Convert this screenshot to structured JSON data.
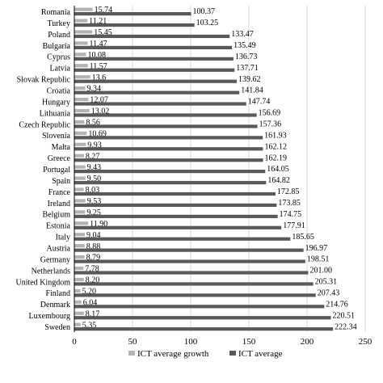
{
  "chart_data": {
    "type": "bar",
    "orientation": "horizontal",
    "categories": [
      "Romania",
      "Turkey",
      "Poland",
      "Bulgaria",
      "Cyprus",
      "Latvia",
      "Slovak Republic",
      "Croatia",
      "Hungary",
      "Lithuania",
      "Czech Republic",
      "Slovenia",
      "Malta",
      "Greece",
      "Portugal",
      "Spain",
      "France",
      "Ireland",
      "Belgium",
      "Estonia",
      "Italy",
      "Austria",
      "Germany",
      "Netherlands",
      "United Kingdom",
      "Finland",
      "Denmark",
      "Luxembourg",
      "Sweden"
    ],
    "series": [
      {
        "name": "ICT average growth",
        "color": "#b3b3b3",
        "values": [
          15.74,
          11.21,
          15.45,
          11.47,
          10.08,
          11.57,
          13.6,
          9.34,
          12.07,
          13.02,
          8.56,
          10.69,
          9.93,
          8.27,
          9.43,
          9.5,
          8.03,
          9.53,
          9.25,
          11.9,
          9.04,
          8.88,
          8.79,
          7.78,
          8.2,
          5.2,
          6.04,
          8.17,
          5.35
        ],
        "labels": [
          "15.74",
          "11.21",
          "15.45",
          "11.47",
          "10.08",
          "11.57",
          "13.6",
          "9.34",
          "12.07",
          "13.02",
          "8.56",
          "10.69",
          "9.93",
          "8.27",
          "9.43",
          "9.50",
          "8.03",
          "9.53",
          "9.25",
          "11.90",
          "9.04",
          "8.88",
          "8.79",
          "7.78",
          "8.20",
          "5.20",
          "6.04",
          "8.17",
          "5.35"
        ]
      },
      {
        "name": "ICT average",
        "color": "#595959",
        "values": [
          100.37,
          103.25,
          133.47,
          135.49,
          136.73,
          137.71,
          139.62,
          141.84,
          147.74,
          156.69,
          157.36,
          161.93,
          162.12,
          162.19,
          164.05,
          164.82,
          172.85,
          173.85,
          174.75,
          177.91,
          185.65,
          196.97,
          198.51,
          201.0,
          205.31,
          207.43,
          214.76,
          220.51,
          222.34
        ],
        "labels": [
          "100.37",
          "103.25",
          "133.47",
          "135.49",
          "136.73",
          "137.71",
          "139.62",
          "141.84",
          "147.74",
          "156.69",
          "157.36",
          "161.93",
          "162.12",
          "162.19",
          "164.05",
          "164.82",
          "172.85",
          "173.85",
          "174.75",
          "177.91",
          "185.65",
          "196.97",
          "198.51",
          "201.00",
          "205.31",
          "207.43",
          "214.76",
          "220.51",
          "222.34"
        ]
      }
    ],
    "xlim": [
      0,
      250
    ],
    "xticks": [
      "0",
      "50",
      "100",
      "150",
      "200",
      "250"
    ],
    "grid": true,
    "legend_position": "bottom"
  }
}
